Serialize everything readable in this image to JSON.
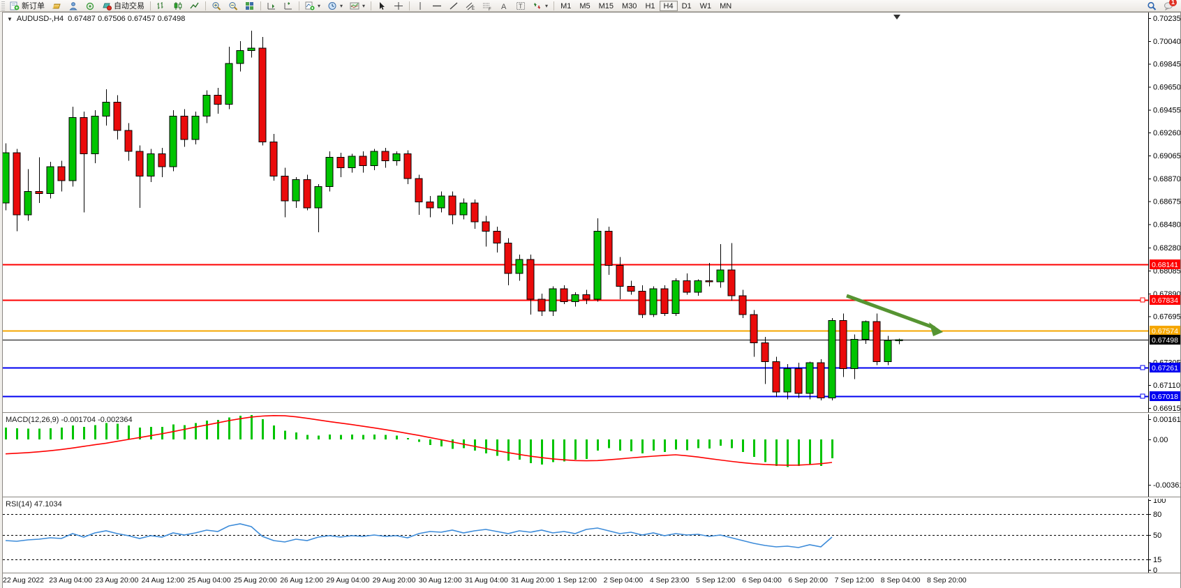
{
  "toolbar": {
    "new_order_label": "新订单",
    "auto_trading_label": "自动交易",
    "timeframes": [
      "M1",
      "M5",
      "M15",
      "M30",
      "H1",
      "H4",
      "D1",
      "W1",
      "MN"
    ],
    "active_timeframe": "H4",
    "chat_badge": "1"
  },
  "chart": {
    "title_symbol": "AUDUSD-,H4",
    "title_ohlc": "0.67487 0.67506 0.67457 0.67498",
    "colors": {
      "up": "#00c400",
      "down": "#ea0b0b",
      "wick": "#000000",
      "line_red": "#fe0000",
      "line_orange": "#f5a700",
      "line_blue": "#0000f0",
      "price_line": "#000000",
      "rsi_line": "#3c8bd9",
      "macd_signal": "#fe0000",
      "macd_hist": "#00c400",
      "arrow": "#569432"
    },
    "price_axis_ticks": [
      "0.70235",
      "0.70040",
      "0.69845",
      "0.69650",
      "0.69455",
      "0.69260",
      "0.69065",
      "0.68870",
      "0.68675",
      "0.68480",
      "0.68280",
      "0.68085",
      "0.67890",
      "0.67695",
      "0.67305",
      "0.67110",
      "0.66915"
    ],
    "levels": [
      {
        "price": 0.68141,
        "label": "0.68141",
        "color": "#fe0000",
        "width": 2,
        "handle": false
      },
      {
        "price": 0.67834,
        "label": "0.67834",
        "color": "#fe0000",
        "width": 2,
        "handle": true
      },
      {
        "price": 0.67574,
        "label": "0.67574",
        "color": "#f5a700",
        "width": 2,
        "handle": false
      },
      {
        "price": 0.67498,
        "label": "0.67498",
        "color": "#000000",
        "width": 1,
        "handle": false,
        "is_current_price": true
      },
      {
        "price": 0.67261,
        "label": "0.67261",
        "color": "#0000f0",
        "width": 2,
        "handle": true
      },
      {
        "price": 0.67018,
        "label": "0.67018",
        "color": "#0000f0",
        "width": 2,
        "handle": true
      }
    ],
    "arrow_annotation": {
      "price_start": 0.67871,
      "price_end": 0.67574
    },
    "candles": [
      [
        0.6866,
        0.6917,
        0.686,
        0.6909
      ],
      [
        0.6909,
        0.6912,
        0.6842,
        0.6856
      ],
      [
        0.6856,
        0.6895,
        0.6851,
        0.6876
      ],
      [
        0.6876,
        0.6905,
        0.6866,
        0.6874
      ],
      [
        0.6874,
        0.6901,
        0.687,
        0.6897
      ],
      [
        0.6897,
        0.6902,
        0.6876,
        0.6885
      ],
      [
        0.6885,
        0.6948,
        0.688,
        0.6939
      ],
      [
        0.6939,
        0.6944,
        0.6858,
        0.6908
      ],
      [
        0.6908,
        0.6945,
        0.69,
        0.694
      ],
      [
        0.694,
        0.6963,
        0.6932,
        0.6952
      ],
      [
        0.6952,
        0.6958,
        0.692,
        0.6928
      ],
      [
        0.6928,
        0.6934,
        0.6902,
        0.691
      ],
      [
        0.691,
        0.6915,
        0.6862,
        0.6889
      ],
      [
        0.6889,
        0.6912,
        0.6884,
        0.6908
      ],
      [
        0.6908,
        0.6913,
        0.6888,
        0.6897
      ],
      [
        0.6897,
        0.6945,
        0.6893,
        0.694
      ],
      [
        0.694,
        0.6946,
        0.6914,
        0.692
      ],
      [
        0.692,
        0.6944,
        0.6916,
        0.694
      ],
      [
        0.694,
        0.6962,
        0.6934,
        0.6958
      ],
      [
        0.6958,
        0.6964,
        0.6942,
        0.695
      ],
      [
        0.695,
        0.6999,
        0.6946,
        0.6985
      ],
      [
        0.6985,
        0.7004,
        0.6978,
        0.6996
      ],
      [
        0.6996,
        0.70128,
        0.699,
        0.6998
      ],
      [
        0.6998,
        0.70075,
        0.6915,
        0.6918
      ],
      [
        0.6918,
        0.6925,
        0.6885,
        0.6889
      ],
      [
        0.6889,
        0.6896,
        0.6854,
        0.6868
      ],
      [
        0.6868,
        0.6888,
        0.6862,
        0.6886
      ],
      [
        0.6886,
        0.689,
        0.686,
        0.6862
      ],
      [
        0.6862,
        0.6882,
        0.6841,
        0.688
      ],
      [
        0.688,
        0.691,
        0.6876,
        0.6905
      ],
      [
        0.6905,
        0.6909,
        0.6888,
        0.6896
      ],
      [
        0.6896,
        0.6908,
        0.6892,
        0.6906
      ],
      [
        0.6906,
        0.691,
        0.6892,
        0.6898
      ],
      [
        0.6898,
        0.6912,
        0.6894,
        0.691
      ],
      [
        0.691,
        0.6913,
        0.6896,
        0.6902
      ],
      [
        0.6902,
        0.691,
        0.6898,
        0.6908
      ],
      [
        0.6908,
        0.6911,
        0.6882,
        0.6887
      ],
      [
        0.6887,
        0.689,
        0.6856,
        0.6867
      ],
      [
        0.6867,
        0.6872,
        0.6854,
        0.6862
      ],
      [
        0.6862,
        0.6876,
        0.6858,
        0.6872
      ],
      [
        0.6872,
        0.6876,
        0.6848,
        0.6856
      ],
      [
        0.6856,
        0.687,
        0.6852,
        0.6866
      ],
      [
        0.6866,
        0.6869,
        0.6844,
        0.685
      ],
      [
        0.685,
        0.6855,
        0.6829,
        0.6842
      ],
      [
        0.6842,
        0.6846,
        0.6824,
        0.6832
      ],
      [
        0.6832,
        0.6836,
        0.6796,
        0.6806
      ],
      [
        0.6806,
        0.6822,
        0.68,
        0.6818
      ],
      [
        0.6818,
        0.6822,
        0.6771,
        0.6784
      ],
      [
        0.6784,
        0.6789,
        0.677,
        0.6774
      ],
      [
        0.6774,
        0.6795,
        0.677,
        0.6793
      ],
      [
        0.6793,
        0.6796,
        0.678,
        0.6782
      ],
      [
        0.6782,
        0.679,
        0.6778,
        0.6788
      ],
      [
        0.6788,
        0.6792,
        0.678,
        0.6784
      ],
      [
        0.6784,
        0.6853,
        0.6782,
        0.6842
      ],
      [
        0.6842,
        0.6846,
        0.6805,
        0.6813
      ],
      [
        0.6813,
        0.682,
        0.6784,
        0.6795
      ],
      [
        0.6795,
        0.68,
        0.6788,
        0.6791
      ],
      [
        0.6791,
        0.6796,
        0.6768,
        0.6771
      ],
      [
        0.6771,
        0.6795,
        0.6769,
        0.6793
      ],
      [
        0.6793,
        0.6796,
        0.677,
        0.6772
      ],
      [
        0.6772,
        0.6802,
        0.677,
        0.68
      ],
      [
        0.68,
        0.6806,
        0.6788,
        0.679
      ],
      [
        0.679,
        0.6801,
        0.6787,
        0.68
      ],
      [
        0.68,
        0.6815,
        0.6795,
        0.6799
      ],
      [
        0.6799,
        0.6831,
        0.6794,
        0.6809
      ],
      [
        0.6809,
        0.6832,
        0.6783,
        0.6787
      ],
      [
        0.6787,
        0.6792,
        0.6768,
        0.6771
      ],
      [
        0.6771,
        0.6775,
        0.6735,
        0.6747
      ],
      [
        0.6747,
        0.6752,
        0.6712,
        0.6731
      ],
      [
        0.6731,
        0.6735,
        0.6701,
        0.6705
      ],
      [
        0.6705,
        0.6729,
        0.6699,
        0.6725
      ],
      [
        0.6725,
        0.673,
        0.67,
        0.6704
      ],
      [
        0.6704,
        0.6731,
        0.6699,
        0.673
      ],
      [
        0.673,
        0.6733,
        0.6698,
        0.67
      ],
      [
        0.67,
        0.6768,
        0.6698,
        0.6766
      ],
      [
        0.6766,
        0.6772,
        0.6718,
        0.6725
      ],
      [
        0.6725,
        0.6754,
        0.6716,
        0.675
      ],
      [
        0.675,
        0.6766,
        0.6746,
        0.6765
      ],
      [
        0.6765,
        0.6772,
        0.6728,
        0.6731
      ],
      [
        0.6731,
        0.6753,
        0.6728,
        0.6749
      ],
      [
        0.67487,
        0.67506,
        0.67457,
        0.67498
      ]
    ],
    "date_labels": [
      "22 Aug 2022",
      "23 Aug 04:00",
      "23 Aug 20:00",
      "24 Aug 12:00",
      "25 Aug 04:00",
      "25 Aug 20:00",
      "26 Aug 12:00",
      "29 Aug 04:00",
      "29 Aug 20:00",
      "30 Aug 12:00",
      "31 Aug 04:00",
      "31 Aug 20:00",
      "1 Sep 12:00",
      "2 Sep 04:00",
      "4 Sep 23:00",
      "5 Sep 12:00",
      "6 Sep 04:00",
      "6 Sep 20:00",
      "7 Sep 12:00",
      "8 Sep 04:00",
      "8 Sep 20:00"
    ]
  },
  "macd": {
    "label": "MACD(12,26,9)",
    "values_text": "-0.001704 -0.002364",
    "axis_labels": [
      "0.00161",
      "0.00",
      "-0.003619"
    ],
    "axis_values": [
      0.00161,
      0,
      -0.003619
    ],
    "hist": [
      0.95,
      0.9,
      0.85,
      0.85,
      0.9,
      0.95,
      1.1,
      1.0,
      1.15,
      1.3,
      1.25,
      1.1,
      0.95,
      1.0,
      1.0,
      1.2,
      1.15,
      1.3,
      1.5,
      1.55,
      1.75,
      1.9,
      1.95,
      1.6,
      1.1,
      0.7,
      0.55,
      0.35,
      0.3,
      0.4,
      0.35,
      0.4,
      0.35,
      0.4,
      0.35,
      0.3,
      0.1,
      -0.2,
      -0.45,
      -0.55,
      -0.75,
      -0.7,
      -0.9,
      -1.1,
      -1.3,
      -1.7,
      -1.6,
      -1.9,
      -2.0,
      -1.8,
      -1.75,
      -1.6,
      -1.55,
      -0.9,
      -0.7,
      -0.9,
      -0.95,
      -1.1,
      -0.9,
      -1.0,
      -0.8,
      -0.85,
      -0.7,
      -0.72,
      -0.5,
      -0.7,
      -1.0,
      -1.4,
      -1.8,
      -2.1,
      -2.2,
      -2.1,
      -2.0,
      -2.1,
      -1.5
    ],
    "signal": [
      -1.15,
      -1.1,
      -1.05,
      -0.98,
      -0.9,
      -0.8,
      -0.68,
      -0.55,
      -0.42,
      -0.3,
      -0.15,
      0,
      0.15,
      0.3,
      0.45,
      0.62,
      0.8,
      0.98,
      1.15,
      1.32,
      1.5,
      1.65,
      1.78,
      1.86,
      1.9,
      1.88,
      1.8,
      1.68,
      1.55,
      1.42,
      1.3,
      1.18,
      1.05,
      0.92,
      0.78,
      0.63,
      0.48,
      0.32,
      0.15,
      -0.02,
      -0.2,
      -0.38,
      -0.55,
      -0.72,
      -0.9,
      -1.05,
      -1.2,
      -1.33,
      -1.45,
      -1.55,
      -1.62,
      -1.68,
      -1.7,
      -1.68,
      -1.62,
      -1.55,
      -1.47,
      -1.4,
      -1.33,
      -1.27,
      -1.22,
      -1.3,
      -1.4,
      -1.52,
      -1.64,
      -1.75,
      -1.85,
      -1.93,
      -1.99,
      -2.03,
      -2.05,
      -2.04,
      -2.0,
      -1.93,
      -1.83
    ]
  },
  "rsi": {
    "label": "RSI(14)",
    "value_text": "47.1034",
    "axis_labels": [
      "100",
      "80",
      "50",
      "15",
      "0"
    ],
    "axis_values": [
      100,
      80,
      50,
      15,
      0
    ],
    "level_lines": [
      80,
      50,
      15
    ],
    "values": [
      42,
      41,
      43,
      44,
      46,
      45,
      52,
      47,
      53,
      56,
      52,
      49,
      45,
      49,
      47,
      53,
      50,
      53,
      57,
      55,
      63,
      66,
      62,
      48,
      42,
      40,
      44,
      42,
      47,
      49,
      47,
      49,
      48,
      50,
      48,
      49,
      46,
      52,
      55,
      54,
      57,
      53,
      56,
      58,
      55,
      52,
      56,
      54,
      57,
      53,
      55,
      52,
      58,
      60,
      56,
      52,
      54,
      50,
      53,
      49,
      52,
      50,
      51,
      48,
      50,
      46,
      42,
      38,
      35,
      33,
      34,
      32,
      36,
      33,
      47
    ]
  }
}
